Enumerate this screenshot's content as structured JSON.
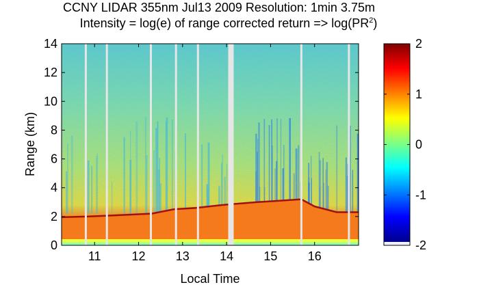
{
  "chart_data": {
    "type": "heatmap",
    "title": "CCNY LIDAR 355nm Jul13 2009 Resolution: 1min 3.75m",
    "subtitle_prefix": "Intensity = log(e) of range corrected return => log(PR",
    "subtitle_sup": "2",
    "subtitle_suffix": ")",
    "xlabel": "Local Time",
    "ylabel": "Range (km)",
    "xlim": [
      10.25,
      17.0
    ],
    "ylim": [
      0,
      14
    ],
    "xticks": [
      11,
      12,
      13,
      14,
      15,
      16
    ],
    "yticks": [
      0,
      2,
      4,
      6,
      8,
      10,
      12,
      14
    ],
    "colorbar": {
      "range": [
        -2,
        2
      ],
      "ticks": [
        2,
        1,
        0,
        -1,
        -2
      ],
      "colormap": "jet"
    },
    "boundary_layer_height_km": [
      {
        "time": 10.25,
        "height": 1.95
      },
      {
        "time": 10.8,
        "height": 2.0
      },
      {
        "time": 11.25,
        "height": 2.05
      },
      {
        "time": 12.3,
        "height": 2.2
      },
      {
        "time": 12.8,
        "height": 2.5
      },
      {
        "time": 13.3,
        "height": 2.6
      },
      {
        "time": 13.9,
        "height": 2.8
      },
      {
        "time": 14.1,
        "height": 2.85
      },
      {
        "time": 14.7,
        "height": 3.0
      },
      {
        "time": 15.2,
        "height": 3.1
      },
      {
        "time": 15.7,
        "height": 3.2
      },
      {
        "time": 16.0,
        "height": 2.7
      },
      {
        "time": 16.5,
        "height": 2.3
      },
      {
        "time": 17.0,
        "height": 2.3
      }
    ],
    "data_gaps": [
      10.8,
      11.28,
      12.28,
      12.85,
      13.35,
      14.1,
      15.7,
      16.78
    ]
  }
}
